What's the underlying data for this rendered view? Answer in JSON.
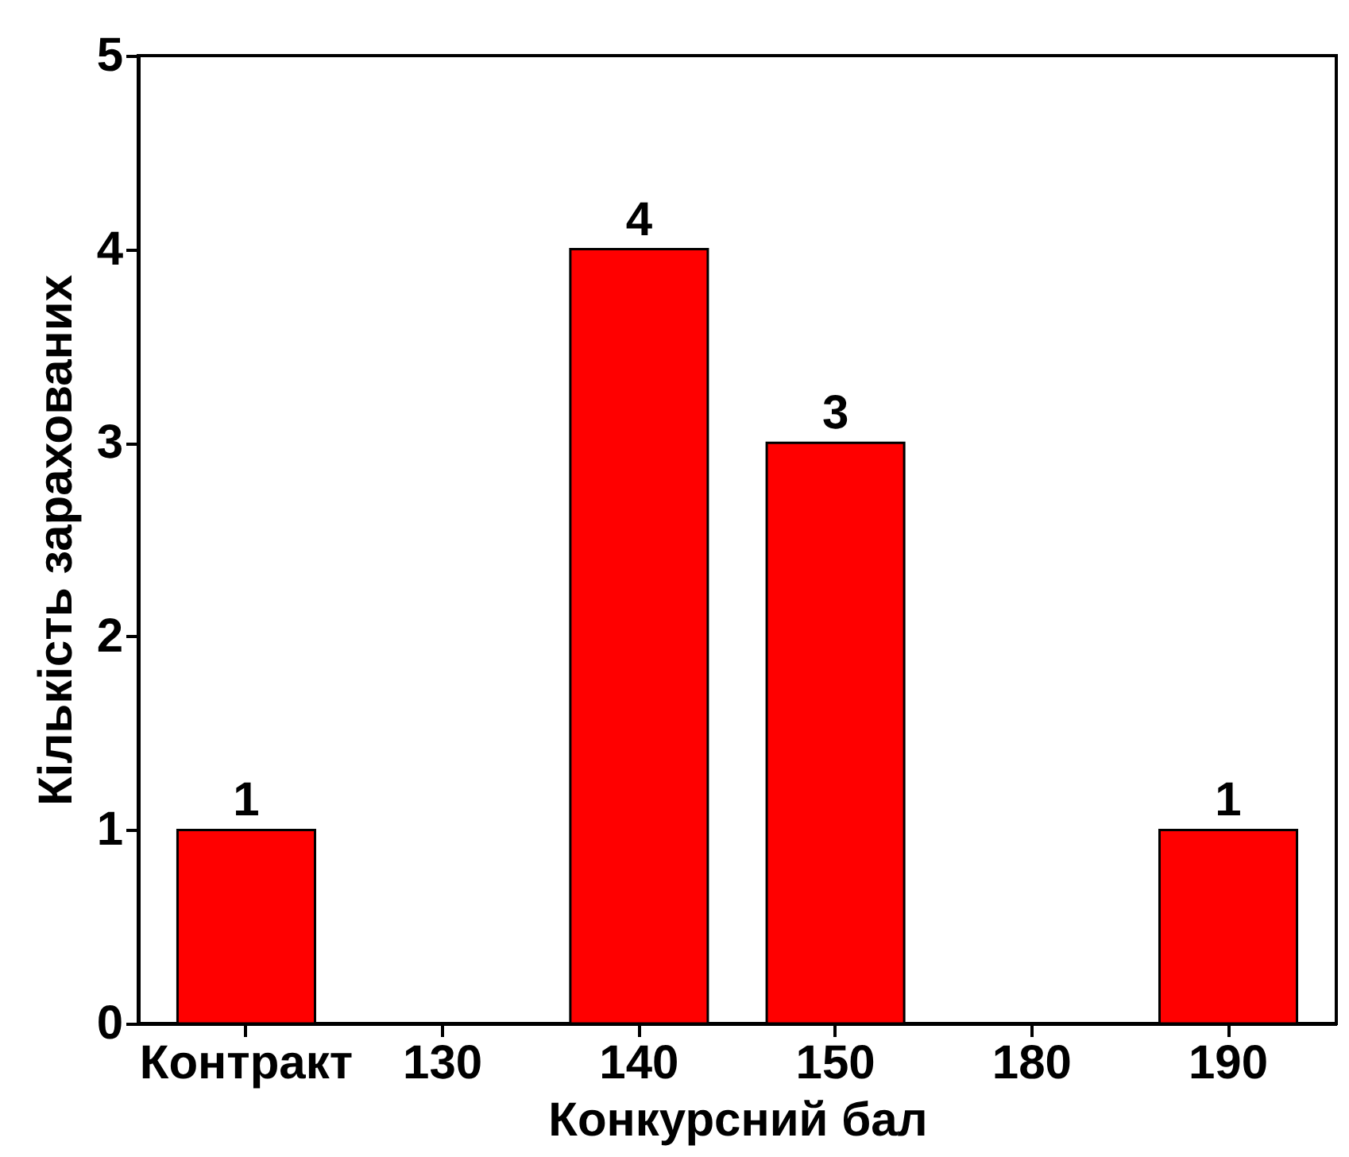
{
  "chart_data": {
    "type": "bar",
    "xlabel": "Конкурсний бал",
    "ylabel": "Кількість зарахованих",
    "categories": [
      "Контракт",
      "130",
      "140",
      "150",
      "180",
      "190"
    ],
    "values": [
      1,
      null,
      4,
      3,
      null,
      1
    ],
    "color": "#ff0000",
    "ylim": [
      0,
      5
    ],
    "yticks": [
      0,
      1,
      2,
      3,
      4,
      5
    ],
    "data_labels": true,
    "grid": false
  }
}
